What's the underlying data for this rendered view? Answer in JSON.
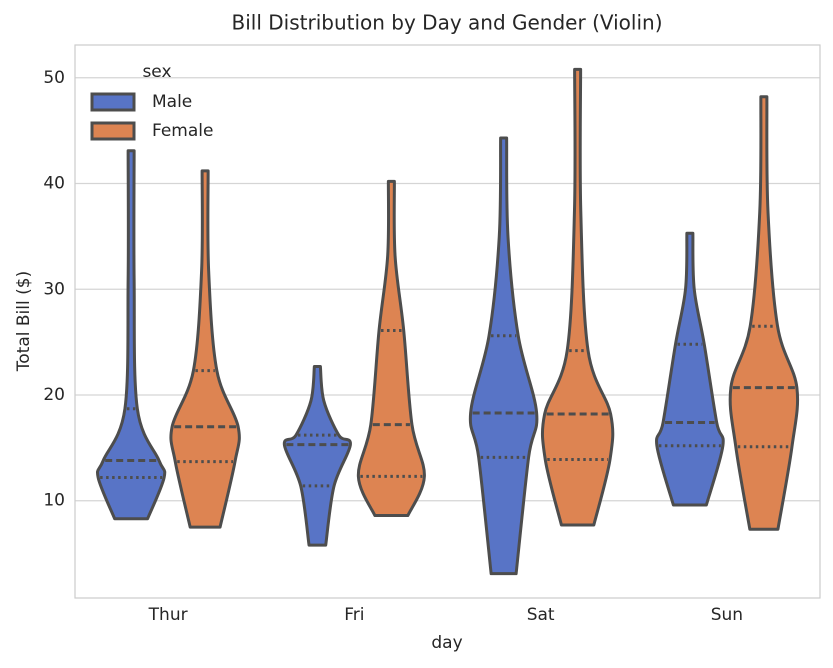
{
  "chart_data": {
    "type": "violin",
    "title": "Bill Distribution by Day and Gender (Violin)",
    "x_label": "day",
    "y_label": "Total Bill ($)",
    "categories": [
      "Thur",
      "Fri",
      "Sat",
      "Sun"
    ],
    "legend_title": "sex",
    "legend": "upper left",
    "grid": true,
    "ylim": [
      0.8,
      53.1
    ],
    "yticks": [
      10,
      20,
      30,
      40,
      50
    ],
    "series": [
      {
        "name": "Male",
        "color": "#5874c6",
        "min": [
          8.3,
          5.8,
          3.1,
          9.6
        ],
        "q1": [
          12.2,
          11.4,
          14.1,
          15.2
        ],
        "median": [
          13.8,
          15.3,
          18.3,
          17.4
        ],
        "q3": [
          18.7,
          16.2,
          25.6,
          24.8
        ],
        "max": [
          43.1,
          22.7,
          44.3,
          35.3
        ]
      },
      {
        "name": "Female",
        "color": "#dd8452",
        "min": [
          7.5,
          8.6,
          7.7,
          7.3
        ],
        "q1": [
          13.7,
          12.3,
          13.9,
          15.1
        ],
        "median": [
          17.0,
          17.2,
          18.2,
          20.7
        ],
        "q3": [
          22.3,
          26.1,
          24.2,
          26.5
        ],
        "max": [
          41.2,
          40.2,
          50.8,
          48.2
        ]
      }
    ]
  }
}
